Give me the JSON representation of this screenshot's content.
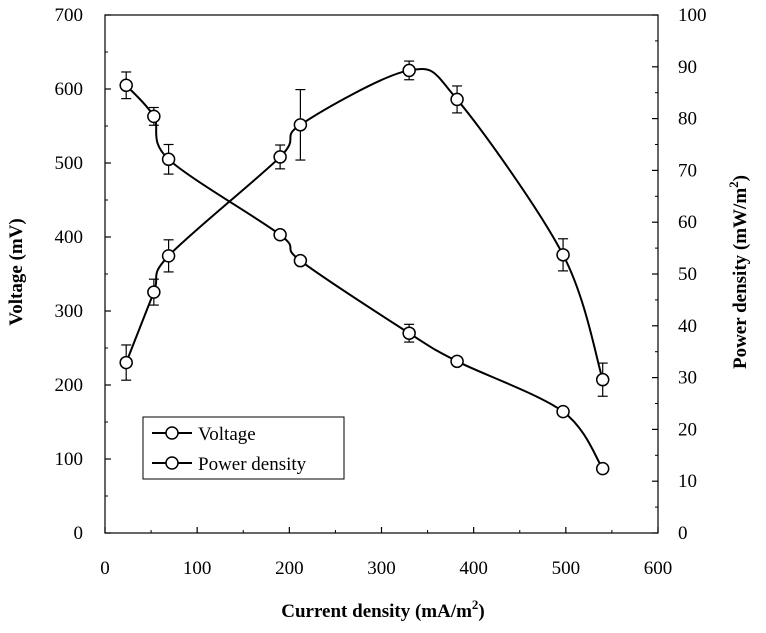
{
  "chart_data": {
    "type": "line",
    "title": "",
    "xlabel": "Current density (mA/m",
    "xlabel_sup": "2",
    "xlabel_end": ")",
    "ylabel_left": "Voltage (mV)",
    "ylabel_right": "Power density (mW/m",
    "ylabel_right_sup": "2",
    "ylabel_right_end": ")",
    "xlim": [
      0,
      600
    ],
    "ylim_left": [
      0,
      700
    ],
    "ylim_right": [
      0,
      100
    ],
    "x_ticks": [
      "0",
      "100",
      "200",
      "300",
      "400",
      "500",
      "600"
    ],
    "y_left_ticks": [
      "0",
      "100",
      "200",
      "300",
      "400",
      "500",
      "600",
      "700"
    ],
    "y_right_ticks": [
      "0",
      "10",
      "20",
      "30",
      "40",
      "50",
      "60",
      "70",
      "80",
      "90",
      "100"
    ],
    "grid": false,
    "legend_position": "bottom-left",
    "series": [
      {
        "name": "Voltage",
        "axis": "left",
        "color": "#000000",
        "marker": "open-circle",
        "x": [
          23,
          53,
          69,
          190,
          212,
          330,
          382,
          497,
          540
        ],
        "y": [
          605,
          563,
          505,
          403,
          368,
          270,
          232,
          164,
          87
        ],
        "err": [
          18,
          12,
          20,
          5,
          5,
          12,
          4,
          4,
          4
        ]
      },
      {
        "name": "Power density",
        "axis": "right",
        "color": "#000000",
        "marker": "open-circle",
        "x": [
          23,
          53,
          69,
          190,
          212,
          330,
          382,
          497,
          540
        ],
        "y": [
          32.9,
          46.5,
          53.5,
          72.6,
          78.8,
          89.3,
          83.7,
          53.7,
          29.6
        ],
        "err": [
          3.4,
          2.5,
          3.1,
          2.3,
          6.8,
          1.8,
          2.6,
          3.1,
          3.2
        ]
      }
    ]
  }
}
